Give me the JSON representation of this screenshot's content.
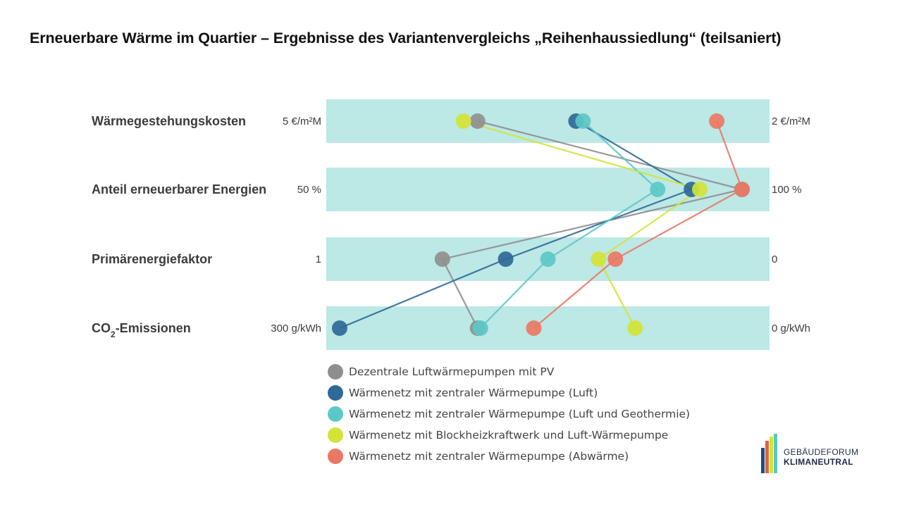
{
  "title": "Erneuerbare Wärme im Quartier – Ergebnisse des Variantenvergleichs „Reihenhaussiedlung“ (teilsaniert)",
  "chart_data": {
    "type": "slope-dot",
    "band_color": "#bce8e6",
    "rows": [
      {
        "label": "Wärmegestehungskosten",
        "sub": "",
        "label_suffix": "",
        "left": "5 €/m²M",
        "right": "2 €/m²M"
      },
      {
        "label": "Anteil erneuerbarer Energien",
        "sub": "",
        "label_suffix": "",
        "left": "50 %",
        "right": "100 %"
      },
      {
        "label": "Primärenergiefaktor",
        "sub": "",
        "label_suffix": "",
        "left": "1",
        "right": "0"
      },
      {
        "label": "CO",
        "sub": "2",
        "label_suffix": "-Emissionen",
        "left": "300 g/kWh",
        "right": "0 g/kWh"
      }
    ],
    "series": [
      {
        "name": "Dezentrale Luftwärmepumpen mit PV",
        "color": "#8f8f8f",
        "values": [
          4.0,
          98,
          0.75,
          200
        ]
      },
      {
        "name": "Wärmenetz mit zentraler Wärmepumpe (Luft)",
        "color": "#2f6996",
        "values": [
          3.3,
          92,
          0.6,
          298
        ]
      },
      {
        "name": "Wärmenetz mit zentraler Wärmepumpe (Luft und Geothermie)",
        "color": "#5bc8c8",
        "values": [
          3.25,
          88,
          0.5,
          198
        ]
      },
      {
        "name": "Wärmenetz mit Blockheizkraftwerk und Luft-Wärmepumpe",
        "color": "#d4e337",
        "values": [
          4.1,
          93,
          0.38,
          88
        ]
      },
      {
        "name": "Wärmenetz mit zentraler Wärmepumpe (Abwärme)",
        "color": "#ea7864",
        "values": [
          2.3,
          98,
          0.34,
          160
        ]
      }
    ]
  },
  "logo": {
    "line1": "GEBÄUDEFORUM",
    "line2": "KLIMANEUTRAL",
    "bar_colors": [
      "#1f4e79",
      "#e06040",
      "#d4e337",
      "#5bc8c8"
    ]
  }
}
